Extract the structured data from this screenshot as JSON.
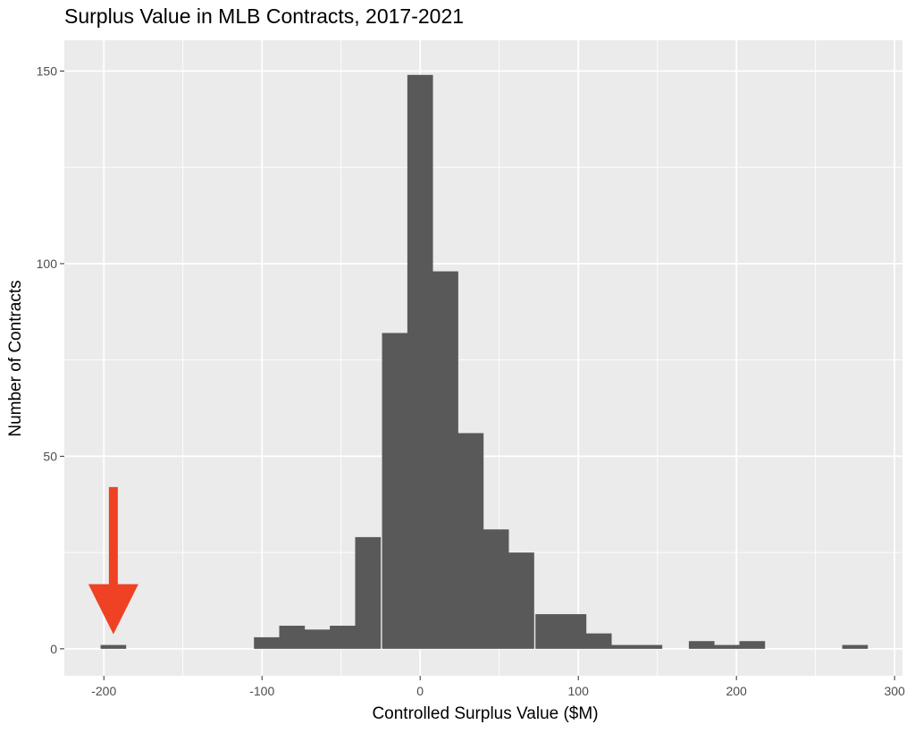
{
  "chart_data": {
    "type": "bar",
    "title": "Surplus Value in MLB Contracts, 2017-2021",
    "xlabel": "Controlled Surplus Value ($M)",
    "ylabel": "Number of Contracts",
    "xlim": [
      -225,
      305
    ],
    "ylim": [
      -7,
      158
    ],
    "x_ticks": [
      -200,
      -100,
      0,
      100,
      200,
      300
    ],
    "x_tick_labels": [
      "-200",
      "-100",
      "0",
      "100",
      "200",
      "300"
    ],
    "y_ticks": [
      0,
      50,
      100,
      150
    ],
    "y_tick_labels": [
      "0",
      "50",
      "100",
      "150"
    ],
    "grid": true,
    "bin_width": 16.2,
    "bins": [
      {
        "center": -194,
        "count": 1
      },
      {
        "center": -97,
        "count": 3
      },
      {
        "center": -81,
        "count": 6
      },
      {
        "center": -65,
        "count": 5
      },
      {
        "center": -49,
        "count": 6
      },
      {
        "center": -33,
        "count": 29
      },
      {
        "center": -16,
        "count": 82
      },
      {
        "center": 0,
        "count": 149
      },
      {
        "center": 16,
        "count": 98
      },
      {
        "center": 32,
        "count": 56
      },
      {
        "center": 48,
        "count": 31
      },
      {
        "center": 64,
        "count": 25
      },
      {
        "center": 81,
        "count": 9
      },
      {
        "center": 97,
        "count": 9
      },
      {
        "center": 113,
        "count": 4
      },
      {
        "center": 129,
        "count": 1
      },
      {
        "center": 145,
        "count": 1
      },
      {
        "center": 178,
        "count": 2
      },
      {
        "center": 194,
        "count": 1
      },
      {
        "center": 210,
        "count": 2
      },
      {
        "center": 275,
        "count": 1
      }
    ],
    "annotation": {
      "type": "arrow",
      "color": "#ef4123",
      "points_to_x": -194,
      "points_to_y": 1
    }
  },
  "colors": {
    "panel": "#ebebeb",
    "grid_major": "#ffffff",
    "bar": "#595959",
    "arrow": "#ef4123"
  }
}
